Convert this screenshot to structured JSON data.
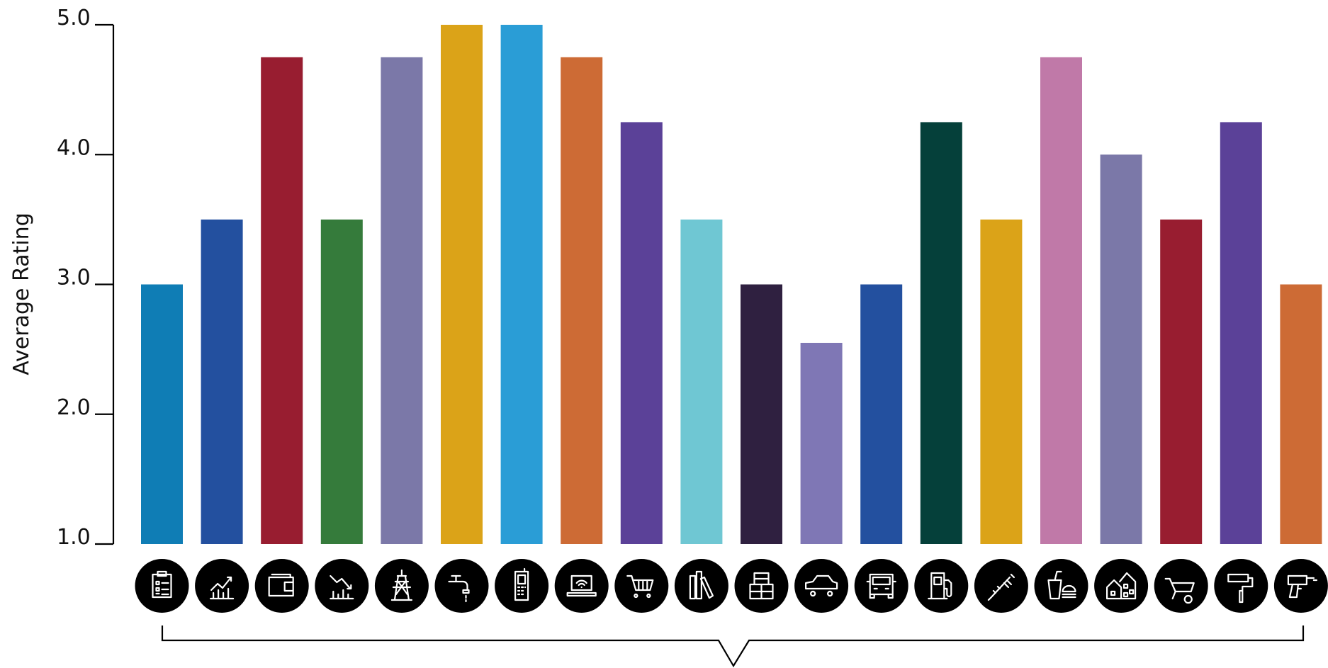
{
  "chart_data": {
    "type": "bar",
    "title": "",
    "xlabel": "",
    "ylabel": "Average Rating",
    "ylim": [
      1.0,
      5.0
    ],
    "yticks": [
      "1.0",
      "2.0",
      "3.0",
      "4.0",
      "5.0"
    ],
    "grid": false,
    "legend": "none",
    "categories": [
      "clipboard-icon",
      "growth-chart-icon",
      "wallet-icon",
      "decline-chart-icon",
      "power-tower-icon",
      "water-tap-icon",
      "mobile-phone-icon",
      "laptop-wifi-icon",
      "shopping-cart-icon",
      "books-icon",
      "packages-icon",
      "car-icon",
      "truck-icon",
      "fuel-pump-icon",
      "syringe-icon",
      "fast-food-icon",
      "houses-icon",
      "wheelbarrow-icon",
      "paint-roller-icon",
      "power-drill-icon"
    ],
    "values": [
      3.0,
      3.5,
      4.75,
      3.5,
      4.75,
      5.0,
      5.0,
      4.75,
      4.25,
      3.5,
      3.0,
      2.55,
      3.0,
      4.25,
      3.5,
      4.75,
      4.0,
      3.5,
      4.25,
      3.0
    ],
    "colors": [
      "#0f7db5",
      "#23509f",
      "#981d30",
      "#357b3b",
      "#7b78a8",
      "#dba318",
      "#2a9dd6",
      "#cd6b35",
      "#5b4198",
      "#6fc7d3",
      "#2f2040",
      "#7f77b5",
      "#23509f",
      "#05403a",
      "#dba318",
      "#c079a8",
      "#7b78a8",
      "#981d30",
      "#5b4198",
      "#cd6b35"
    ]
  }
}
